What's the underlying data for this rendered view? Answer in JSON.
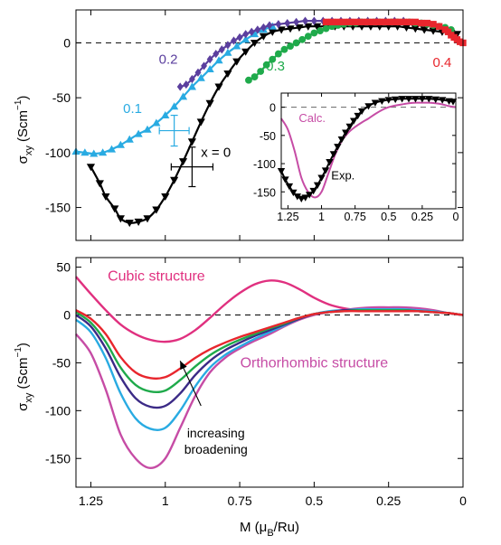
{
  "chart_data": [
    {
      "type": "line",
      "panel": "top",
      "ylabel_main": "σ",
      "ylabel_sub": "xy",
      "ylabel_unit": " (Scm",
      "ylabel_exp": "−1",
      "ylabel_close": ")",
      "xlim": [
        1.3,
        0
      ],
      "ylim": [
        -180,
        30
      ],
      "yticks": [
        {
          "value": 0,
          "label": "0"
        },
        {
          "value": -50,
          "label": "-50"
        },
        {
          "value": -100,
          "label": "-100"
        },
        {
          "value": -150,
          "label": "-150"
        }
      ],
      "reference_line": 0,
      "series": [
        {
          "name": "x = 0",
          "color": "#000000",
          "marker": "triangle-down",
          "x": [
            1.25,
            1.22,
            1.2,
            1.17,
            1.15,
            1.12,
            1.09,
            1.06,
            1.03,
            1.0,
            0.97,
            0.94,
            0.91,
            0.88,
            0.85,
            0.82,
            0.79,
            0.76,
            0.73,
            0.7,
            0.67,
            0.64,
            0.61,
            0.58,
            0.55,
            0.52,
            0.49,
            0.46,
            0.43,
            0.4,
            0.37,
            0.34,
            0.31,
            0.28,
            0.25,
            0.22,
            0.19,
            0.16,
            0.13,
            0.1,
            0.07,
            0.04,
            0.02
          ],
          "y": [
            -113,
            -128,
            -140,
            -151,
            -160,
            -164,
            -163,
            -160,
            -152,
            -140,
            -125,
            -108,
            -90,
            -72,
            -55,
            -40,
            -28,
            -17,
            -8,
            0,
            6,
            10,
            12,
            13,
            14,
            15,
            15,
            15,
            15,
            15,
            15,
            15,
            15,
            15,
            15,
            15,
            14,
            13,
            12,
            11,
            10,
            9,
            8
          ]
        },
        {
          "name": "0.1",
          "color": "#29abe2",
          "marker": "triangle-up",
          "x": [
            1.3,
            1.27,
            1.24,
            1.21,
            1.18,
            1.15,
            1.12,
            1.09,
            1.06,
            1.03,
            1.0,
            0.97,
            0.94,
            0.91,
            0.88,
            0.85,
            0.82,
            0.79,
            0.76,
            0.73,
            0.7,
            0.67,
            0.64
          ],
          "y": [
            -99,
            -100,
            -101,
            -100,
            -97,
            -93,
            -88,
            -83,
            -79,
            -73,
            -66,
            -58,
            -49,
            -40,
            -32,
            -24,
            -16,
            -9,
            -3,
            3,
            8,
            12,
            15
          ]
        },
        {
          "name": "0.2",
          "color": "#5b3f9e",
          "marker": "diamond",
          "x": [
            0.95,
            0.93,
            0.91,
            0.89,
            0.87,
            0.85,
            0.83,
            0.81,
            0.79,
            0.77,
            0.75,
            0.73,
            0.71,
            0.69,
            0.67,
            0.65,
            0.62,
            0.59,
            0.56,
            0.53,
            0.5,
            0.47,
            0.44,
            0.41,
            0.38,
            0.35,
            0.32,
            0.29,
            0.26,
            0.23,
            0.2
          ],
          "y": [
            -40,
            -38,
            -33,
            -27,
            -21,
            -15,
            -10,
            -6,
            -2,
            2,
            5,
            8,
            10,
            12,
            14,
            16,
            17,
            18,
            19,
            20,
            20,
            20,
            20,
            20,
            20,
            20,
            20,
            20,
            20,
            20,
            20
          ]
        },
        {
          "name": "0.3",
          "color": "#1faa4b",
          "marker": "circle",
          "x": [
            0.72,
            0.7,
            0.68,
            0.66,
            0.64,
            0.62,
            0.6,
            0.58,
            0.56,
            0.54,
            0.52,
            0.5,
            0.48,
            0.46,
            0.44,
            0.42,
            0.4,
            0.38,
            0.36,
            0.34,
            0.32,
            0.3,
            0.28,
            0.26,
            0.24,
            0.22,
            0.2,
            0.18,
            0.16,
            0.14,
            0.12,
            0.1,
            0.08,
            0.06,
            0.04
          ],
          "y": [
            -34,
            -31,
            -26,
            -20,
            -15,
            -10,
            -6,
            -3,
            0,
            3,
            6,
            9,
            11,
            13,
            15,
            16,
            17,
            18,
            18,
            19,
            19,
            19,
            19,
            19,
            19,
            19,
            19,
            19,
            18,
            18,
            17,
            16,
            15,
            14,
            12
          ]
        },
        {
          "name": "0.4",
          "color": "#e8262d",
          "marker": "square",
          "x": [
            0.46,
            0.44,
            0.42,
            0.4,
            0.38,
            0.36,
            0.34,
            0.32,
            0.3,
            0.28,
            0.26,
            0.24,
            0.22,
            0.2,
            0.18,
            0.16,
            0.14,
            0.12,
            0.1,
            0.08,
            0.06,
            0.05,
            0.04,
            0.03,
            0.02,
            0.01,
            0.0
          ],
          "y": [
            19,
            19,
            19,
            19,
            19,
            19,
            19,
            19,
            19,
            19,
            19,
            19,
            19,
            19,
            19,
            19,
            18,
            18,
            17,
            15,
            12,
            10,
            7,
            5,
            3,
            1,
            0
          ]
        }
      ],
      "error_bars": [
        {
          "series": "0.1",
          "x": 0.97,
          "y": -80,
          "xerr": 0.05,
          "yerr": 14
        },
        {
          "series": "x = 0",
          "x": 0.91,
          "y": -113,
          "xerr": 0.07,
          "yerr": 18
        }
      ],
      "series_labels": [
        {
          "text": "0.1",
          "x": 1.11,
          "y": -64,
          "color": "#29abe2"
        },
        {
          "text": "0.2",
          "x": 0.99,
          "y": -19,
          "color": "#5b3f9e"
        },
        {
          "text": "0.3",
          "x": 0.63,
          "y": -25,
          "color": "#1faa4b"
        },
        {
          "text": "0.4",
          "x": 0.07,
          "y": -22,
          "color": "#e8262d"
        },
        {
          "text": "x = 0",
          "x": 0.83,
          "y": -104,
          "color": "#000000"
        }
      ]
    },
    {
      "type": "line",
      "panel": "inset",
      "xlim": [
        1.3,
        0
      ],
      "ylim": [
        -180,
        25
      ],
      "xticks": [
        {
          "value": 1.25,
          "label": "1.25"
        },
        {
          "value": 1.0,
          "label": "1"
        },
        {
          "value": 0.75,
          "label": "0.75"
        },
        {
          "value": 0.5,
          "label": "0.5"
        },
        {
          "value": 0.25,
          "label": "0.25"
        },
        {
          "value": 0.0,
          "label": "0"
        }
      ],
      "yticks": [
        {
          "value": 0,
          "label": "0"
        },
        {
          "value": -50,
          "label": "-50"
        },
        {
          "value": -100,
          "label": "-100"
        },
        {
          "value": -150,
          "label": "-150"
        }
      ],
      "reference_line": 0,
      "series": [
        {
          "name": "Calc.",
          "color": "#c64ca5",
          "x": [
            1.3,
            1.25,
            1.2,
            1.15,
            1.1,
            1.05,
            1.0,
            0.95,
            0.9,
            0.85,
            0.8,
            0.75,
            0.7,
            0.65,
            0.6,
            0.55,
            0.5,
            0.45,
            0.4,
            0.35,
            0.3,
            0.25,
            0.2,
            0.15,
            0.1,
            0.05,
            0.0
          ],
          "y": [
            -20,
            -40,
            -78,
            -125,
            -150,
            -160,
            -150,
            -118,
            -85,
            -60,
            -45,
            -35,
            -27,
            -20,
            -12,
            -5,
            0,
            3,
            5,
            7,
            8,
            8,
            8,
            7,
            5,
            2,
            0
          ]
        },
        {
          "name": "Exp.",
          "color": "#000000",
          "marker": "triangle-down",
          "x": [
            1.3,
            1.27,
            1.24,
            1.21,
            1.18,
            1.15,
            1.12,
            1.09,
            1.06,
            1.03,
            1.0,
            0.97,
            0.94,
            0.91,
            0.88,
            0.85,
            0.82,
            0.79,
            0.76,
            0.73,
            0.7,
            0.65,
            0.6,
            0.55,
            0.5,
            0.45,
            0.4,
            0.35,
            0.3,
            0.25,
            0.2,
            0.15,
            0.1,
            0.05,
            0.02
          ],
          "y": [
            -113,
            -128,
            -140,
            -151,
            -158,
            -162,
            -160,
            -155,
            -148,
            -138,
            -125,
            -112,
            -97,
            -83,
            -70,
            -57,
            -45,
            -34,
            -24,
            -15,
            -7,
            2,
            8,
            11,
            13,
            14,
            15,
            15,
            15,
            15,
            15,
            14,
            13,
            11,
            10
          ]
        }
      ],
      "series_labels": [
        {
          "text": "Calc.",
          "x": 1.07,
          "y": -26,
          "color": "#c64ca5"
        },
        {
          "text": "Exp.",
          "x": 0.84,
          "y": -128,
          "color": "#000000"
        }
      ]
    },
    {
      "type": "line",
      "panel": "bottom",
      "xlabel_main": "M (μ",
      "xlabel_sub": "B",
      "xlabel_rest": "/Ru)",
      "ylabel_main": "σ",
      "ylabel_sub": "xy",
      "ylabel_rest": " (Scm",
      "ylabel_exp": "−1",
      "ylabel_close": ")",
      "xlim": [
        1.3,
        0
      ],
      "ylim": [
        -180,
        60
      ],
      "xticks": [
        {
          "value": 1.25,
          "label": "1.25"
        },
        {
          "value": 1.0,
          "label": "1"
        },
        {
          "value": 0.75,
          "label": "0.75"
        },
        {
          "value": 0.5,
          "label": "0.5"
        },
        {
          "value": 0.25,
          "label": "0.25"
        },
        {
          "value": 0.0,
          "label": "0"
        }
      ],
      "yticks": [
        {
          "value": 50,
          "label": "50"
        },
        {
          "value": 0,
          "label": "0"
        },
        {
          "value": -50,
          "label": "-50"
        },
        {
          "value": -100,
          "label": "-100"
        },
        {
          "value": -150,
          "label": "-150"
        }
      ],
      "reference_line": 0,
      "series": [
        {
          "name": "Cubic structure",
          "color": "#e0307f",
          "x": [
            1.3,
            1.25,
            1.2,
            1.15,
            1.1,
            1.05,
            1.0,
            0.95,
            0.9,
            0.85,
            0.8,
            0.75,
            0.7,
            0.65,
            0.6,
            0.55,
            0.5,
            0.45,
            0.4,
            0.35,
            0.3,
            0.25,
            0.2,
            0.15,
            0.1,
            0.05,
            0.0
          ],
          "y": [
            40,
            22,
            5,
            -10,
            -20,
            -26,
            -28,
            -25,
            -16,
            -3,
            11,
            23,
            32,
            36,
            34,
            27,
            18,
            11,
            7,
            5,
            4,
            4,
            4,
            4,
            3,
            2,
            0
          ]
        },
        {
          "name": "",
          "color": "#c64ca5",
          "x": [
            1.3,
            1.25,
            1.2,
            1.15,
            1.1,
            1.05,
            1.0,
            0.95,
            0.9,
            0.85,
            0.8,
            0.75,
            0.7,
            0.65,
            0.6,
            0.55,
            0.5,
            0.45,
            0.4,
            0.35,
            0.3,
            0.25,
            0.2,
            0.15,
            0.1,
            0.05,
            0.0
          ],
          "y": [
            -20,
            -40,
            -78,
            -125,
            -150,
            -160,
            -150,
            -118,
            -85,
            -60,
            -45,
            -35,
            -27,
            -20,
            -12,
            -5,
            0,
            3,
            5,
            7,
            8,
            8,
            8,
            7,
            5,
            2,
            0
          ]
        },
        {
          "name": "",
          "color": "#29abe2",
          "x": [
            1.3,
            1.25,
            1.2,
            1.15,
            1.1,
            1.05,
            1.0,
            0.95,
            0.9,
            0.85,
            0.8,
            0.75,
            0.7,
            0.65,
            0.6,
            0.55,
            0.5,
            0.45,
            0.4,
            0.35,
            0.3,
            0.25,
            0.2,
            0.15,
            0.1,
            0.05,
            0.0
          ],
          "y": [
            -5,
            -18,
            -45,
            -82,
            -108,
            -119,
            -118,
            -100,
            -75,
            -55,
            -42,
            -33,
            -25,
            -18,
            -11,
            -4,
            1,
            4,
            5,
            6,
            6,
            6,
            6,
            5,
            4,
            2,
            0
          ]
        },
        {
          "name": "",
          "color": "#3b2a86",
          "x": [
            1.3,
            1.25,
            1.2,
            1.15,
            1.1,
            1.05,
            1.0,
            0.95,
            0.9,
            0.85,
            0.8,
            0.75,
            0.7,
            0.65,
            0.6,
            0.55,
            0.5,
            0.45,
            0.4,
            0.35,
            0.3,
            0.25,
            0.2,
            0.15,
            0.1,
            0.05,
            0.0
          ],
          "y": [
            0,
            -12,
            -35,
            -65,
            -87,
            -96,
            -95,
            -82,
            -63,
            -48,
            -37,
            -29,
            -22,
            -16,
            -10,
            -4,
            1,
            3,
            5,
            5,
            5,
            5,
            5,
            4,
            3,
            2,
            0
          ]
        },
        {
          "name": "",
          "color": "#1faa4b",
          "x": [
            1.3,
            1.25,
            1.2,
            1.15,
            1.1,
            1.05,
            1.0,
            0.95,
            0.9,
            0.85,
            0.8,
            0.75,
            0.7,
            0.65,
            0.6,
            0.55,
            0.5,
            0.45,
            0.4,
            0.35,
            0.3,
            0.25,
            0.2,
            0.15,
            0.1,
            0.05,
            0.0
          ],
          "y": [
            3,
            -8,
            -28,
            -55,
            -73,
            -80,
            -79,
            -68,
            -54,
            -42,
            -33,
            -26,
            -20,
            -14,
            -9,
            -3,
            1,
            3,
            4,
            5,
            5,
            5,
            5,
            4,
            3,
            2,
            0
          ]
        },
        {
          "name": "",
          "color": "#e8262d",
          "x": [
            1.3,
            1.25,
            1.2,
            1.15,
            1.1,
            1.05,
            1.0,
            0.95,
            0.9,
            0.85,
            0.8,
            0.75,
            0.7,
            0.65,
            0.6,
            0.55,
            0.5,
            0.45,
            0.4,
            0.35,
            0.3,
            0.25,
            0.2,
            0.15,
            0.1,
            0.05,
            0.0
          ],
          "y": [
            5,
            -4,
            -20,
            -44,
            -60,
            -66,
            -65,
            -56,
            -45,
            -36,
            -29,
            -23,
            -18,
            -13,
            -8,
            -3,
            1,
            3,
            4,
            4,
            4,
            4,
            4,
            4,
            3,
            2,
            0
          ]
        }
      ],
      "series_labels": [
        {
          "text": "Cubic structure",
          "x": 1.03,
          "y": 36,
          "color": "#e0307f"
        },
        {
          "text": "Orthorhombic structure",
          "x": 0.5,
          "y": -55,
          "color": "#c64ca5"
        }
      ],
      "annotations": [
        {
          "text_lines": [
            "increasing",
            "broadening"
          ],
          "x": 0.83,
          "y": -128,
          "arrow_from": [
            0.88,
            -95
          ],
          "arrow_to": [
            0.95,
            -48
          ],
          "color": "#000000"
        }
      ]
    }
  ]
}
